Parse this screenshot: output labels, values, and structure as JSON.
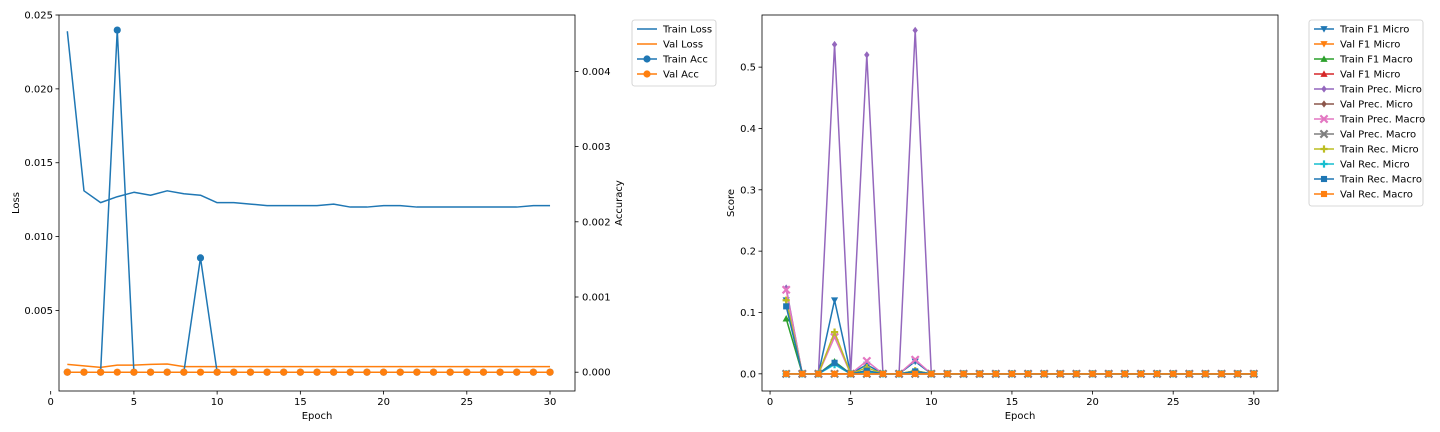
{
  "chart_data": [
    {
      "type": "line",
      "xlabel": "Epoch",
      "ylabel": "Loss",
      "y2label": "Accuracy",
      "xlim": [
        0.5,
        31.5
      ],
      "ylim": [
        -0.00045,
        0.025
      ],
      "y2lim": [
        -0.00025,
        0.00475
      ],
      "xticks": [
        0,
        5,
        10,
        15,
        20,
        25,
        30
      ],
      "yticks": [
        0.005,
        0.01,
        0.015,
        0.02,
        0.025
      ],
      "ytick_labels": [
        "0.005",
        "0.010",
        "0.015",
        "0.020",
        "0.025"
      ],
      "y2ticks": [
        0.0,
        0.001,
        0.002,
        0.003,
        0.004
      ],
      "y2tick_labels": [
        "0.000",
        "0.001",
        "0.002",
        "0.003",
        "0.004"
      ],
      "legend_position": "outside-top-right",
      "x": [
        1,
        2,
        3,
        4,
        5,
        6,
        7,
        8,
        9,
        10,
        11,
        12,
        13,
        14,
        15,
        16,
        17,
        18,
        19,
        20,
        21,
        22,
        23,
        24,
        25,
        26,
        27,
        28,
        29,
        30
      ],
      "series": [
        {
          "name": "Train Loss",
          "axis": "left",
          "color": "#1f77b4",
          "marker": "none",
          "values": [
            0.0239,
            0.0131,
            0.0123,
            0.0127,
            0.013,
            0.0128,
            0.0131,
            0.0129,
            0.0128,
            0.0123,
            0.0123,
            0.0122,
            0.0121,
            0.0121,
            0.0121,
            0.0121,
            0.0122,
            0.012,
            0.012,
            0.0121,
            0.0121,
            0.012,
            0.012,
            0.012,
            0.012,
            0.012,
            0.012,
            0.012,
            0.0121,
            0.0121
          ]
        },
        {
          "name": "Val Loss",
          "axis": "left",
          "color": "#ff7f0e",
          "marker": "none",
          "values": [
            0.00135,
            0.00125,
            0.00115,
            0.0013,
            0.0013,
            0.00135,
            0.00138,
            0.0012,
            0.0012,
            0.0012,
            0.0012,
            0.0012,
            0.0012,
            0.0012,
            0.0012,
            0.0012,
            0.0012,
            0.0012,
            0.0012,
            0.0012,
            0.0012,
            0.0012,
            0.0012,
            0.0012,
            0.0012,
            0.0012,
            0.0012,
            0.0012,
            0.0012,
            0.0012
          ]
        },
        {
          "name": "Train Acc",
          "axis": "right",
          "color": "#1f77b4",
          "marker": "circle",
          "values": [
            0,
            0,
            0,
            0.00455,
            0,
            0,
            0,
            0,
            0.00152,
            0,
            0,
            0,
            0,
            0,
            0,
            0,
            0,
            0,
            0,
            0,
            0,
            0,
            0,
            0,
            0,
            0,
            0,
            0,
            0,
            0
          ]
        },
        {
          "name": "Val Acc",
          "axis": "right",
          "color": "#ff7f0e",
          "marker": "circle",
          "values": [
            0,
            0,
            0,
            0,
            0,
            0,
            0,
            0,
            0,
            0,
            0,
            0,
            0,
            0,
            0,
            0,
            0,
            0,
            0,
            0,
            0,
            0,
            0,
            0,
            0,
            0,
            0,
            0,
            0,
            0
          ]
        }
      ]
    },
    {
      "type": "line",
      "xlabel": "Epoch",
      "ylabel": "Score",
      "xlim": [
        -0.5,
        31.5
      ],
      "ylim": [
        -0.028,
        0.585
      ],
      "xticks": [
        0,
        5,
        10,
        15,
        20,
        25,
        30
      ],
      "yticks": [
        0.0,
        0.1,
        0.2,
        0.3,
        0.4,
        0.5
      ],
      "ytick_labels": [
        "0.0",
        "0.1",
        "0.2",
        "0.3",
        "0.4",
        "0.5"
      ],
      "legend_position": "outside-top-right",
      "x": [
        1,
        2,
        3,
        4,
        5,
        6,
        7,
        8,
        9,
        10,
        11,
        12,
        13,
        14,
        15,
        16,
        17,
        18,
        19,
        20,
        21,
        22,
        23,
        24,
        25,
        26,
        27,
        28,
        29,
        30
      ],
      "series": [
        {
          "name": "Train F1 Micro",
          "color": "#1f77b4",
          "marker": "tri_down",
          "values": [
            0.12,
            0,
            0,
            0.12,
            0,
            0.015,
            0,
            0,
            0.02,
            0,
            0,
            0,
            0,
            0,
            0,
            0,
            0,
            0,
            0,
            0,
            0,
            0,
            0,
            0,
            0,
            0,
            0,
            0,
            0,
            0
          ]
        },
        {
          "name": "Val F1 Micro",
          "color": "#ff7f0e",
          "marker": "tri_down",
          "values": [
            0,
            0,
            0,
            0,
            0,
            0,
            0,
            0,
            0,
            0,
            0,
            0,
            0,
            0,
            0,
            0,
            0,
            0,
            0,
            0,
            0,
            0,
            0,
            0,
            0,
            0,
            0,
            0,
            0,
            0
          ]
        },
        {
          "name": "Train F1 Macro",
          "color": "#2ca02c",
          "marker": "tri_up",
          "values": [
            0.09,
            0,
            0,
            0.02,
            0,
            0.005,
            0,
            0,
            0.005,
            0,
            0,
            0,
            0,
            0,
            0,
            0,
            0,
            0,
            0,
            0,
            0,
            0,
            0,
            0,
            0,
            0,
            0,
            0,
            0,
            0
          ]
        },
        {
          "name": "Val F1 Micro",
          "color": "#d62728",
          "marker": "tri_up",
          "values": [
            0,
            0,
            0,
            0,
            0,
            0,
            0,
            0,
            0,
            0,
            0,
            0,
            0,
            0,
            0,
            0,
            0,
            0,
            0,
            0,
            0,
            0,
            0,
            0,
            0,
            0,
            0,
            0,
            0,
            0
          ]
        },
        {
          "name": "Train Prec. Micro",
          "color": "#9467bd",
          "marker": "diamond",
          "values": [
            0.14,
            0,
            0,
            0.537,
            0,
            0.52,
            0,
            0,
            0.56,
            0,
            0,
            0,
            0,
            0,
            0,
            0,
            0,
            0,
            0,
            0,
            0,
            0,
            0,
            0,
            0,
            0,
            0,
            0,
            0,
            0
          ]
        },
        {
          "name": "Val Prec. Micro",
          "color": "#8c564b",
          "marker": "diamond",
          "values": [
            0,
            0,
            0,
            0,
            0,
            0,
            0,
            0,
            0,
            0,
            0,
            0,
            0,
            0,
            0,
            0,
            0,
            0,
            0,
            0,
            0,
            0,
            0,
            0,
            0,
            0,
            0,
            0,
            0,
            0
          ]
        },
        {
          "name": "Train Prec. Macro",
          "color": "#e377c2",
          "marker": "x",
          "values": [
            0.137,
            0,
            0,
            0.06,
            0,
            0.021,
            0,
            0,
            0.023,
            0,
            0,
            0,
            0,
            0,
            0,
            0,
            0,
            0,
            0,
            0,
            0,
            0,
            0,
            0,
            0,
            0,
            0,
            0,
            0,
            0
          ]
        },
        {
          "name": "Val Prec. Macro",
          "color": "#7f7f7f",
          "marker": "x",
          "values": [
            0,
            0,
            0,
            0,
            0,
            0,
            0,
            0,
            0,
            0,
            0,
            0,
            0,
            0,
            0,
            0,
            0,
            0,
            0,
            0,
            0,
            0,
            0,
            0,
            0,
            0,
            0,
            0,
            0,
            0
          ]
        },
        {
          "name": "Train Rec. Micro",
          "color": "#bcbd22",
          "marker": "plus",
          "values": [
            0.12,
            0,
            0,
            0.068,
            0,
            0.01,
            0,
            0,
            0.005,
            0,
            0,
            0,
            0,
            0,
            0,
            0,
            0,
            0,
            0,
            0,
            0,
            0,
            0,
            0,
            0,
            0,
            0,
            0,
            0,
            0
          ]
        },
        {
          "name": "Val Rec. Micro",
          "color": "#17becf",
          "marker": "plus",
          "values": [
            0,
            0,
            0,
            0.015,
            0,
            0.002,
            0,
            0,
            0.002,
            0,
            0,
            0,
            0,
            0,
            0,
            0,
            0,
            0,
            0,
            0,
            0,
            0,
            0,
            0,
            0,
            0,
            0,
            0,
            0,
            0
          ]
        },
        {
          "name": "Train Rec. Macro",
          "color": "#1f77b4",
          "marker": "square",
          "values": [
            0.11,
            0,
            0,
            0.018,
            0,
            0.005,
            0,
            0,
            0.004,
            0,
            0,
            0,
            0,
            0,
            0,
            0,
            0,
            0,
            0,
            0,
            0,
            0,
            0,
            0,
            0,
            0,
            0,
            0,
            0,
            0
          ]
        },
        {
          "name": "Val Rec. Macro",
          "color": "#ff7f0e",
          "marker": "square",
          "values": [
            0,
            0,
            0,
            0,
            0,
            0,
            0,
            0,
            0,
            0,
            0,
            0,
            0,
            0,
            0,
            0,
            0,
            0,
            0,
            0,
            0,
            0,
            0,
            0,
            0,
            0,
            0,
            0,
            0,
            0
          ]
        }
      ]
    }
  ]
}
